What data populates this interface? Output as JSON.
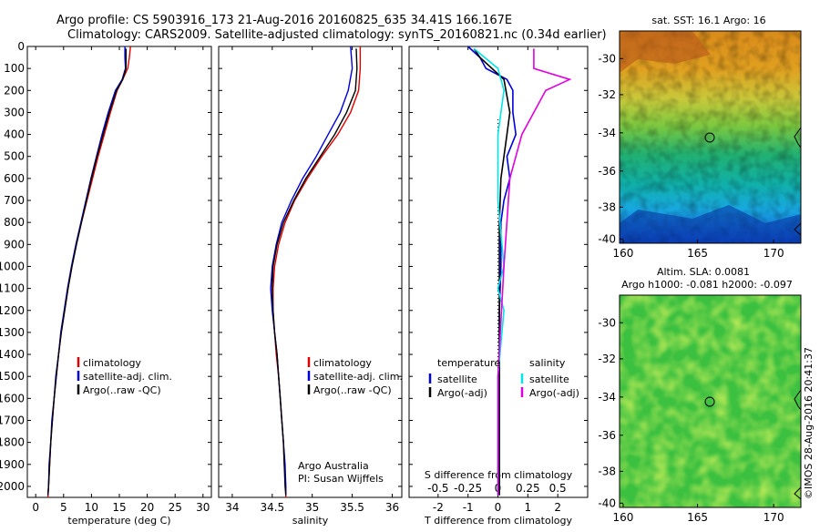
{
  "header": {
    "line1": "Argo profile: CS 5903916_173 21-Aug-2016 20160825_635 34.41S 166.167E",
    "line2": "Climatology: CARS2009. Satellite-adjusted climatology: synTS_20160821.nc (0.34d earlier)"
  },
  "side_stamp": "©IMOS 28-Aug-2016 20:41:37",
  "colors": {
    "climatology": "#e00000",
    "satellite": "#0000dd",
    "argo": "#000000",
    "cyan": "#00e5e5",
    "magenta": "#e000e0"
  },
  "chart_data": [
    {
      "type": "line",
      "xlabel": "temperature (deg C)",
      "xticks": [
        0,
        5,
        10,
        15,
        20,
        25,
        30
      ],
      "xlim": [
        -1.5,
        31.5
      ],
      "yticks": [
        0,
        100,
        200,
        300,
        400,
        500,
        600,
        700,
        800,
        900,
        1000,
        1100,
        1200,
        1300,
        1400,
        1500,
        1600,
        1700,
        1800,
        1900,
        2000
      ],
      "ylim": [
        0,
        2050
      ],
      "y_inverted": true,
      "legend": {
        "placement": "lower-middle",
        "entries": [
          "climatology",
          "satellite-adj. clim.",
          "Argo(..raw -QC)"
        ]
      },
      "series": [
        {
          "name": "climatology",
          "color": "climatology",
          "points": [
            [
              17,
              0
            ],
            [
              16.8,
              50
            ],
            [
              16.5,
              100
            ],
            [
              15.6,
              150
            ],
            [
              14.6,
              200
            ],
            [
              13.4,
              300
            ],
            [
              12.3,
              400
            ],
            [
              11.2,
              500
            ],
            [
              10.2,
              600
            ],
            [
              9.2,
              700
            ],
            [
              8.2,
              800
            ],
            [
              7.3,
              900
            ],
            [
              6.5,
              1000
            ],
            [
              5.8,
              1100
            ],
            [
              5.2,
              1200
            ],
            [
              4.6,
              1300
            ],
            [
              4.1,
              1400
            ],
            [
              3.7,
              1500
            ],
            [
              3.3,
              1600
            ],
            [
              3,
              1700
            ],
            [
              2.7,
              1800
            ],
            [
              2.5,
              1900
            ],
            [
              2.3,
              2000
            ],
            [
              2.2,
              2050
            ]
          ]
        },
        {
          "name": "satellite-adj. clim.",
          "color": "satellite",
          "points": [
            [
              16,
              0
            ],
            [
              16,
              50
            ],
            [
              16.1,
              100
            ],
            [
              15.5,
              150
            ],
            [
              14.3,
              200
            ],
            [
              13,
              300
            ],
            [
              11.9,
              400
            ],
            [
              10.9,
              500
            ],
            [
              9.9,
              600
            ],
            [
              9,
              700
            ],
            [
              8.1,
              800
            ],
            [
              7.2,
              900
            ],
            [
              6.4,
              1000
            ],
            [
              5.7,
              1100
            ],
            [
              5.1,
              1200
            ],
            [
              4.5,
              1300
            ],
            [
              4.1,
              1400
            ],
            [
              3.6,
              1500
            ],
            [
              3.3,
              1600
            ],
            [
              2.9,
              1700
            ],
            [
              2.7,
              1800
            ],
            [
              2.4,
              1900
            ],
            [
              2.3,
              2000
            ],
            [
              2.2,
              2040
            ]
          ]
        },
        {
          "name": "Argo(..raw -QC)",
          "color": "argo",
          "points": [
            [
              16.2,
              10
            ],
            [
              16.2,
              50
            ],
            [
              16.2,
              100
            ],
            [
              15.6,
              150
            ],
            [
              14.5,
              200
            ],
            [
              13.2,
              300
            ],
            [
              12.1,
              400
            ],
            [
              11,
              500
            ],
            [
              10,
              600
            ],
            [
              9.1,
              700
            ],
            [
              8.2,
              800
            ],
            [
              7.3,
              900
            ],
            [
              6.5,
              1000
            ],
            [
              5.8,
              1100
            ],
            [
              5.2,
              1200
            ],
            [
              4.6,
              1300
            ],
            [
              4.1,
              1400
            ],
            [
              3.7,
              1500
            ],
            [
              3.3,
              1600
            ],
            [
              3,
              1700
            ],
            [
              2.7,
              1800
            ],
            [
              2.5,
              1900
            ],
            [
              2.3,
              2000
            ],
            [
              2.2,
              2040
            ]
          ]
        }
      ]
    },
    {
      "type": "line",
      "xlabel": "salinity",
      "xticks": [
        34,
        34.5,
        35,
        35.5,
        36
      ],
      "xticklabels": [
        "34",
        "34.5",
        "35",
        "35.5",
        "36"
      ],
      "xlim": [
        33.83,
        36.12
      ],
      "yticks": [
        0,
        100,
        200,
        300,
        400,
        500,
        600,
        700,
        800,
        900,
        1000,
        1100,
        1200,
        1300,
        1400,
        1500,
        1600,
        1700,
        1800,
        1900,
        2000
      ],
      "ylim": [
        0,
        2050
      ],
      "y_inverted": true,
      "legend": {
        "placement": "lower-right",
        "entries": [
          "climatology",
          "satellite-adj. clim.",
          "Argo(..raw -QC)"
        ]
      },
      "annotation": [
        "Argo Australia",
        "PI: Susan Wijffels"
      ],
      "series": [
        {
          "name": "climatology",
          "color": "climatology",
          "points": [
            [
              35.6,
              0
            ],
            [
              35.6,
              100
            ],
            [
              35.58,
              200
            ],
            [
              35.48,
              300
            ],
            [
              35.32,
              400
            ],
            [
              35.12,
              500
            ],
            [
              34.94,
              600
            ],
            [
              34.78,
              700
            ],
            [
              34.66,
              800
            ],
            [
              34.58,
              900
            ],
            [
              34.53,
              1000
            ],
            [
              34.51,
              1100
            ],
            [
              34.51,
              1200
            ],
            [
              34.53,
              1300
            ],
            [
              34.55,
              1400
            ],
            [
              34.58,
              1500
            ],
            [
              34.6,
              1600
            ],
            [
              34.62,
              1700
            ],
            [
              34.64,
              1800
            ],
            [
              34.65,
              1900
            ],
            [
              34.67,
              2000
            ],
            [
              34.67,
              2050
            ]
          ]
        },
        {
          "name": "satellite-adj. clim.",
          "color": "satellite",
          "points": [
            [
              35.48,
              0
            ],
            [
              35.5,
              100
            ],
            [
              35.45,
              200
            ],
            [
              35.35,
              300
            ],
            [
              35.2,
              400
            ],
            [
              35.05,
              500
            ],
            [
              34.88,
              600
            ],
            [
              34.74,
              700
            ],
            [
              34.62,
              800
            ],
            [
              34.55,
              900
            ],
            [
              34.5,
              1000
            ],
            [
              34.48,
              1100
            ],
            [
              34.5,
              1200
            ],
            [
              34.53,
              1300
            ],
            [
              34.56,
              1400
            ],
            [
              34.58,
              1500
            ],
            [
              34.6,
              1600
            ],
            [
              34.62,
              1700
            ],
            [
              34.64,
              1800
            ],
            [
              34.66,
              1900
            ],
            [
              34.67,
              2000
            ],
            [
              34.67,
              2040
            ]
          ]
        },
        {
          "name": "Argo(..raw -QC)",
          "color": "argo",
          "points": [
            [
              35.55,
              10
            ],
            [
              35.56,
              100
            ],
            [
              35.54,
              200
            ],
            [
              35.43,
              300
            ],
            [
              35.28,
              400
            ],
            [
              35.1,
              500
            ],
            [
              34.92,
              600
            ],
            [
              34.77,
              700
            ],
            [
              34.64,
              800
            ],
            [
              34.56,
              900
            ],
            [
              34.51,
              1000
            ],
            [
              34.5,
              1100
            ],
            [
              34.51,
              1200
            ],
            [
              34.53,
              1300
            ],
            [
              34.56,
              1400
            ],
            [
              34.58,
              1500
            ],
            [
              34.6,
              1600
            ],
            [
              34.62,
              1700
            ],
            [
              34.64,
              1800
            ],
            [
              34.65,
              1900
            ],
            [
              34.66,
              2000
            ],
            [
              34.67,
              2040
            ]
          ]
        }
      ]
    },
    {
      "type": "line",
      "xlabel": "T difference from climatology",
      "xlabel2": "S difference from climatology",
      "xticks": [
        -2,
        -1,
        0,
        1,
        2
      ],
      "xticklabels": [
        "-2",
        "-1",
        "0",
        "1",
        "2"
      ],
      "xticks2": [
        -0.5,
        -0.25,
        0,
        0.25,
        0.5
      ],
      "xticklabels2": [
        "-0.5",
        "-0.25",
        "0",
        "0.25",
        "0.5"
      ],
      "xlim": [
        -2.97,
        3.0
      ],
      "ylim": [
        0,
        2050
      ],
      "y_inverted": true,
      "legend": {
        "placement": "lower-middle",
        "groups": [
          {
            "title": "temperature",
            "entries": [
              "satellite",
              "Argo(-adj)"
            ]
          },
          {
            "title": "salinity",
            "entries": [
              "satellite",
              "Argo(-adj)"
            ]
          }
        ]
      },
      "series": [
        {
          "name": "temperature satellite",
          "color": "satellite",
          "points": [
            [
              -1.0,
              0
            ],
            [
              -0.6,
              50
            ],
            [
              -0.4,
              100
            ],
            [
              0.3,
              150
            ],
            [
              0.5,
              200
            ],
            [
              0.5,
              300
            ],
            [
              0.6,
              400
            ],
            [
              0.3,
              500
            ],
            [
              0.4,
              600
            ],
            [
              0.2,
              700
            ],
            [
              0.1,
              800
            ],
            [
              0.1,
              900
            ],
            [
              0.1,
              1000
            ],
            [
              0.05,
              1200
            ],
            [
              0.05,
              1500
            ],
            [
              0.05,
              1800
            ],
            [
              0.05,
              2040
            ]
          ]
        },
        {
          "name": "temperature Argo(-adj)",
          "color": "argo",
          "points": [
            [
              -0.8,
              10
            ],
            [
              -0.6,
              50
            ],
            [
              0.2,
              150
            ],
            [
              0.4,
              300
            ],
            [
              0.3,
              400
            ],
            [
              0.2,
              500
            ],
            [
              0.1,
              600
            ],
            [
              0.05,
              800
            ],
            [
              0.05,
              1200
            ],
            [
              0.05,
              1600
            ],
            [
              0.05,
              2040
            ]
          ]
        },
        {
          "name": "salinity satellite",
          "color": "cyan",
          "points": [
            [
              -0.2,
              10
            ],
            [
              0,
              100
            ],
            [
              0.05,
              200
            ],
            [
              0,
              400
            ],
            [
              0,
              700
            ],
            [
              0.05,
              1000
            ],
            [
              0,
              1100
            ],
            [
              0.05,
              1200
            ],
            [
              0,
              1500
            ],
            [
              0,
              2040
            ]
          ]
        },
        {
          "name": "salinity Argo(-adj)",
          "color": "magenta",
          "points": [
            [
              0.3,
              10
            ],
            [
              0.3,
              100
            ],
            [
              0.6,
              150
            ],
            [
              0.4,
              200
            ],
            [
              0.2,
              400
            ],
            [
              0.1,
              600
            ],
            [
              0.05,
              1000
            ],
            [
              0,
              1500
            ],
            [
              0,
              2040
            ]
          ]
        }
      ]
    }
  ],
  "maps": {
    "sst": {
      "title": "sat. SST: 16.1  Argo: 16",
      "xticks": [
        "160",
        "165",
        "170"
      ],
      "yticks": [
        "-30",
        "-32",
        "-34",
        "-36",
        "-38",
        "-40"
      ]
    },
    "sla": {
      "title1": "Altim. SLA: 0.0081",
      "title2": "Argo h1000: -0.081 h2000: -0.097",
      "xticks": [
        "160",
        "165",
        "170"
      ],
      "yticks": [
        "-30",
        "-32",
        "-34",
        "-36",
        "-38",
        "-40"
      ]
    }
  }
}
